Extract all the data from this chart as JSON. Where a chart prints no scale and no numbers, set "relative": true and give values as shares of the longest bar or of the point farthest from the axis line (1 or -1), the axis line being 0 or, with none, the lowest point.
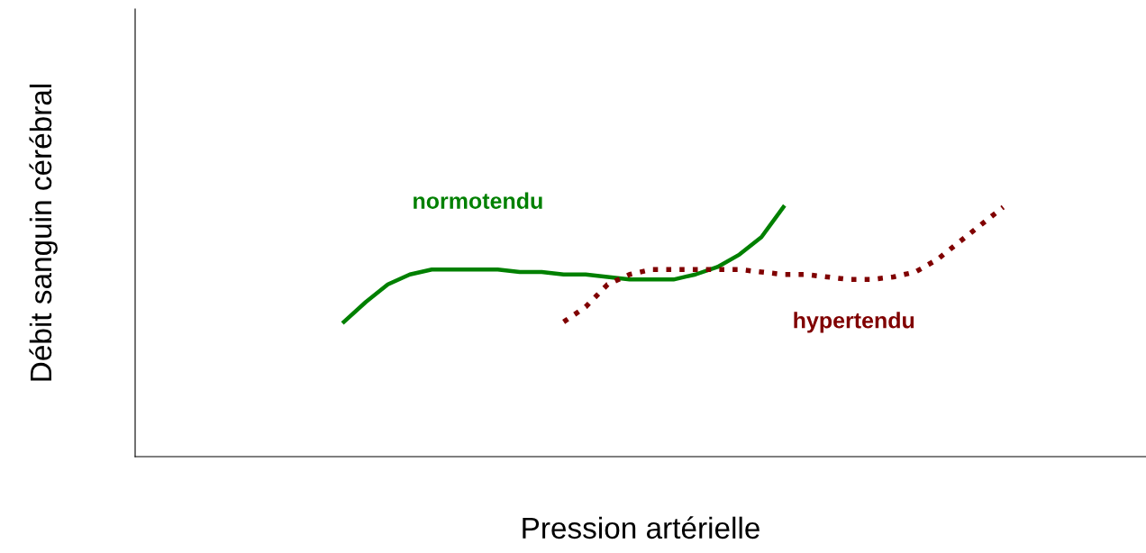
{
  "chart_data": {
    "type": "line",
    "relative": true,
    "xlabel": "Pression artérielle",
    "ylabel": "Débit sanguin cérébral",
    "categories": [
      null,
      null,
      null,
      null,
      null,
      null,
      null,
      null,
      null,
      null,
      null,
      null,
      null,
      null,
      null,
      null,
      null,
      null,
      null,
      null,
      null,
      null,
      null,
      null,
      null,
      null,
      null,
      null,
      null,
      null,
      null,
      null,
      null,
      null,
      null,
      null,
      null,
      null,
      null,
      null,
      null,
      null,
      null,
      null,
      null,
      null
    ],
    "legend": false,
    "marker": "none",
    "series": [
      {
        "name": "normotendu",
        "color": "#008000",
        "line_style": "solid",
        "values": [
          null,
          null,
          null,
          null,
          null,
          null,
          null,
          null,
          null,
          0.54,
          0.62,
          0.69,
          0.73,
          0.75,
          0.75,
          0.75,
          0.75,
          0.74,
          0.74,
          0.73,
          0.73,
          0.72,
          0.71,
          0.71,
          0.71,
          0.73,
          0.76,
          0.81,
          0.88,
          1.0,
          null,
          null,
          null,
          null,
          null,
          null,
          null,
          null,
          null,
          null,
          null,
          null,
          null,
          null,
          null,
          null
        ]
      },
      {
        "name": "hypertendu",
        "color": "#800000",
        "line_style": "dotted",
        "values": [
          null,
          null,
          null,
          null,
          null,
          null,
          null,
          null,
          null,
          null,
          null,
          null,
          null,
          null,
          null,
          null,
          null,
          null,
          null,
          0.54,
          0.6,
          0.69,
          0.73,
          0.75,
          0.75,
          0.75,
          0.75,
          0.75,
          0.74,
          0.73,
          0.73,
          0.72,
          0.71,
          0.71,
          0.72,
          0.74,
          0.79,
          0.86,
          0.93,
          1.0,
          null,
          null,
          null,
          null,
          null,
          null
        ]
      }
    ]
  }
}
